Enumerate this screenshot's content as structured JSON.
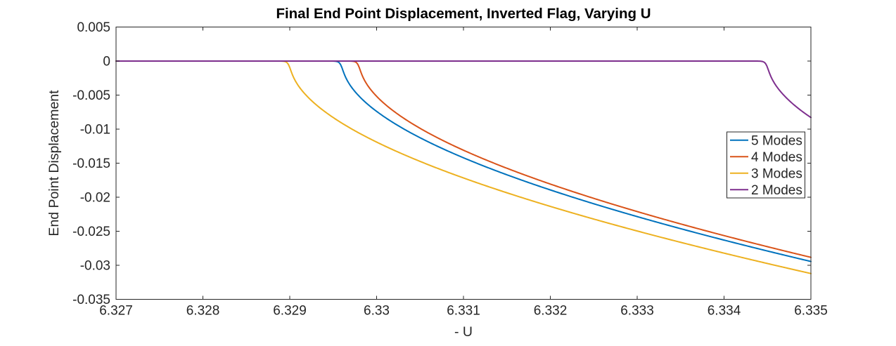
{
  "figure": {
    "background": "#ffffff",
    "axes_color": "#262626",
    "title_color": "#000000"
  },
  "chart_data": {
    "type": "line",
    "title": "Final End Point Displacement, Inverted Flag, Varying U",
    "xlabel": "- U",
    "ylabel": "End Point Displacement",
    "xlim": [
      6.327,
      6.335
    ],
    "ylim": [
      -0.035,
      0.005
    ],
    "grid": false,
    "box": true,
    "tick_direction": "in",
    "xticks": {
      "values": [
        6.327,
        6.328,
        6.329,
        6.33,
        6.331,
        6.332,
        6.333,
        6.334,
        6.335
      ],
      "labels": [
        "6.327",
        "6.328",
        "6.329",
        "6.33",
        "6.331",
        "6.332",
        "6.333",
        "6.334",
        "6.335"
      ]
    },
    "yticks": {
      "values": [
        0.005,
        0,
        -0.005,
        -0.01,
        -0.015,
        -0.02,
        -0.025,
        -0.03,
        -0.035
      ],
      "labels": [
        "0.005",
        "0",
        "-0.005",
        "-0.01",
        "-0.015",
        "-0.02",
        "-0.025",
        "-0.03",
        "-0.035"
      ]
    },
    "legend": {
      "position": "middle-right",
      "border": true,
      "entries": [
        "5 Modes",
        "4 Modes",
        "3 Modes",
        "2 Modes"
      ]
    },
    "series": [
      {
        "name": "5 Modes",
        "color": "#0072BD",
        "critical_U": 6.3296,
        "model": {
          "form": "y = 0 for U<Uc; y = -(a*sqrt(U-Uc)+b*(U-Uc)) for U>=Uc",
          "a": 0.358,
          "b": 0.58,
          "shoulder_width": 1e-05
        },
        "points": [
          [
            6.327,
            0
          ],
          [
            6.3296,
            0
          ],
          [
            6.33,
            -0.0074
          ],
          [
            6.331,
            -0.0142
          ],
          [
            6.332,
            -0.0189
          ],
          [
            6.333,
            -0.0228
          ],
          [
            6.334,
            -0.0263
          ],
          [
            6.335,
            -0.0294
          ]
        ]
      },
      {
        "name": "4 Modes",
        "color": "#D95319",
        "critical_U": 6.3298,
        "model": {
          "form": "y = 0 for U<Uc; y = -(a*sqrt(U-Uc)+b*(U-Uc)) for U>=Uc",
          "a": 0.358,
          "b": 0.58,
          "shoulder_width": 1e-05
        },
        "points": [
          [
            6.327,
            0
          ],
          [
            6.3298,
            0
          ],
          [
            6.33,
            -0.0052
          ],
          [
            6.331,
            -0.0131
          ],
          [
            6.332,
            -0.0181
          ],
          [
            6.333,
            -0.0221
          ],
          [
            6.334,
            -0.0256
          ],
          [
            6.335,
            -0.0288
          ]
        ]
      },
      {
        "name": "3 Modes",
        "color": "#EDB120",
        "critical_U": 6.329,
        "model": {
          "form": "y = 0 for U<Uc; y = -(a*sqrt(U-Uc)+b*(U-Uc)) for U>=Uc",
          "a": 0.358,
          "b": 0.58,
          "shoulder_width": 1e-05
        },
        "points": [
          [
            6.327,
            0
          ],
          [
            6.329,
            0
          ],
          [
            6.3295,
            -0.0083
          ],
          [
            6.33,
            -0.0119
          ],
          [
            6.331,
            -0.0176
          ],
          [
            6.332,
            -0.0217
          ],
          [
            6.333,
            -0.0253
          ],
          [
            6.334,
            -0.0285
          ],
          [
            6.335,
            -0.0315
          ]
        ]
      },
      {
        "name": "2 Modes",
        "color": "#7E2F8E",
        "critical_U": 6.3345,
        "model": {
          "form": "y = 0 for U<Uc; y = -(a*sqrt(U-Uc)+b*(U-Uc)) for U>=Uc",
          "a": 0.358,
          "b": 0.58,
          "shoulder_width": 1e-05
        },
        "points": [
          [
            6.327,
            0
          ],
          [
            6.3345,
            0
          ],
          [
            6.3347,
            -0.0052
          ],
          [
            6.335,
            -0.0083
          ]
        ]
      }
    ]
  }
}
